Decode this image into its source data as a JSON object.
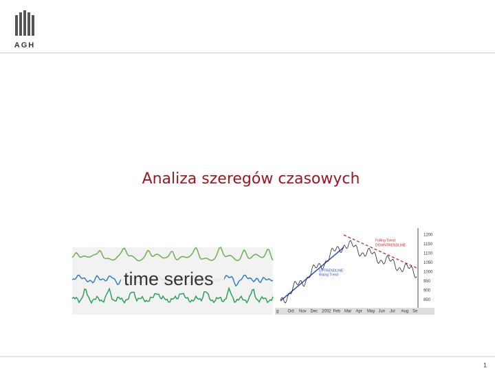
{
  "header": {
    "logo": "AGH"
  },
  "title": "Analiza szeregów czasowych",
  "images": [
    {
      "label": "time series"
    },
    {
      "price_labels": [
        1200,
        1150,
        1100,
        1050,
        1000,
        950,
        900,
        850
      ],
      "months": [
        "g",
        "Oct",
        "Nov",
        "Dec",
        "2002",
        "Feb",
        "Mar",
        "Apr",
        "May",
        "Jun",
        "Jul",
        "Aug",
        "Se"
      ],
      "annotations": [
        "Falling Trend",
        "DOWNTRENDLINE",
        "UPTRENDLINE",
        "Rising Trend"
      ]
    }
  ],
  "footer": {
    "page": 1
  }
}
